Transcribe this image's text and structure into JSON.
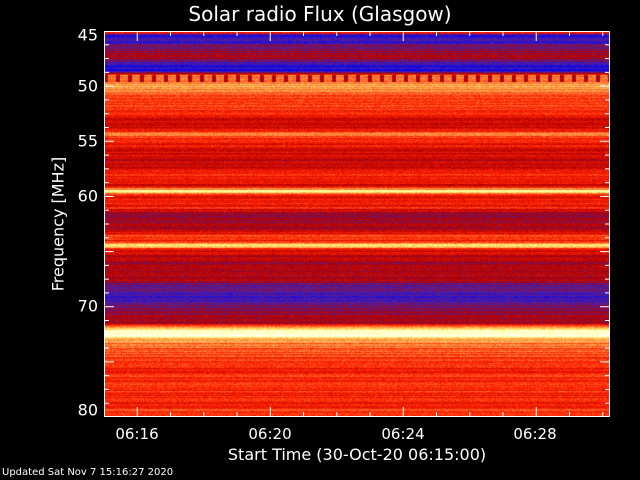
{
  "chart_data": {
    "type": "heatmap",
    "title": "Solar radio Flux (Glasgow)",
    "xlabel": "Start Time (30-Oct-20 06:15:00)",
    "ylabel": "Frequency [MHz]",
    "xlim": [
      "06:15:00",
      "06:30:13"
    ],
    "ylim": [
      45,
      80
    ],
    "y_inverted": true,
    "xticks": [
      "06:16",
      "06:20",
      "06:24",
      "06:28"
    ],
    "yticks": [
      "45",
      "50",
      "55",
      "60",
      "70",
      "80"
    ],
    "colorscale": [
      "#000040",
      "#0000ff",
      "#5020a0",
      "#b00000",
      "#ff2000",
      "#ff9040",
      "#ffff80",
      "#ffffff"
    ],
    "intensity_profile_mhz": [
      [
        45.0,
        0.62
      ],
      [
        45.4,
        0.22
      ],
      [
        46.0,
        0.25
      ],
      [
        46.5,
        0.38
      ],
      [
        47.5,
        0.4
      ],
      [
        48.0,
        0.18
      ],
      [
        48.6,
        0.2
      ],
      [
        49.0,
        0.68
      ],
      [
        49.5,
        0.66
      ],
      [
        50.0,
        0.78
      ],
      [
        50.5,
        0.66
      ],
      [
        52.0,
        0.6
      ],
      [
        53.0,
        0.48
      ],
      [
        53.8,
        0.5
      ],
      [
        54.3,
        0.72
      ],
      [
        54.8,
        0.55
      ],
      [
        56.0,
        0.5
      ],
      [
        57.0,
        0.45
      ],
      [
        58.0,
        0.55
      ],
      [
        59.0,
        0.5
      ],
      [
        59.5,
        0.88
      ],
      [
        59.9,
        0.55
      ],
      [
        61.0,
        0.55
      ],
      [
        61.5,
        0.38
      ],
      [
        63.0,
        0.42
      ],
      [
        63.5,
        0.6
      ],
      [
        64.0,
        0.55
      ],
      [
        64.4,
        0.88
      ],
      [
        64.8,
        0.5
      ],
      [
        66.0,
        0.42
      ],
      [
        67.5,
        0.45
      ],
      [
        68.0,
        0.3
      ],
      [
        69.5,
        0.28
      ],
      [
        70.5,
        0.4
      ],
      [
        71.5,
        0.45
      ],
      [
        72.2,
        1.0
      ],
      [
        72.6,
        0.92
      ],
      [
        73.0,
        0.7
      ],
      [
        74.0,
        0.64
      ],
      [
        75.5,
        0.55
      ],
      [
        77.0,
        0.6
      ],
      [
        78.5,
        0.55
      ],
      [
        80.0,
        0.62
      ]
    ]
  },
  "footer": {
    "updated": "Updated Sat Nov  7 15:16:27 2020"
  }
}
